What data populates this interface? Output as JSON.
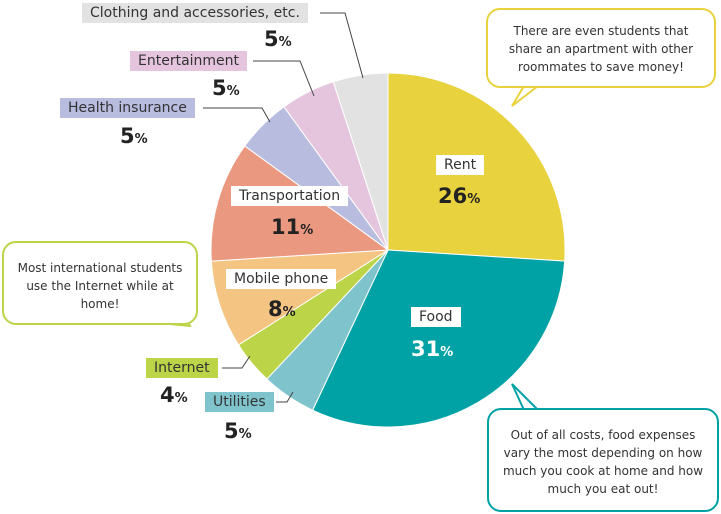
{
  "chart_data": {
    "type": "pie",
    "slices": [
      {
        "label": "Rent",
        "value": 26,
        "color": "#e8d23e"
      },
      {
        "label": "Food",
        "value": 31,
        "color": "#00a2a6"
      },
      {
        "label": "Utilities",
        "value": 5,
        "color": "#7fc4cc"
      },
      {
        "label": "Internet",
        "value": 4,
        "color": "#bcd448"
      },
      {
        "label": "Mobile phone",
        "value": 8,
        "color": "#f4c483"
      },
      {
        "label": "Transportation",
        "value": 11,
        "color": "#ea9880"
      },
      {
        "label": "Health insurance",
        "value": 5,
        "color": "#b8bde0"
      },
      {
        "label": "Entertainment",
        "value": 5,
        "color": "#e5c5dd"
      },
      {
        "label": "Clothing and accessories, etc.",
        "value": 5,
        "color": "#e2e2e2"
      }
    ],
    "unit": "%"
  },
  "labels": {
    "rent": "Rent",
    "food": "Food",
    "utilities": "Utilities",
    "internet": "Internet",
    "mobile": "Mobile phone",
    "transportation": "Transportation",
    "health": "Health insurance",
    "entertainment": "Entertainment",
    "clothing": "Clothing and accessories, etc."
  },
  "values": {
    "rent": "26",
    "food": "31",
    "utilities": "5",
    "internet": "4",
    "mobile": "8",
    "transportation": "11",
    "health": "5",
    "entertainment": "5",
    "clothing": "5"
  },
  "unit": "%",
  "notes": {
    "rent": "There are even students that share an apartment with other roommates to save money!",
    "internet": "Most international students use the Internet while at home!",
    "food": "Out of all costs, food expenses vary the most depending on how much you cook at home and how much you eat out!"
  },
  "colors": {
    "rent_bubble": "#e8d23e",
    "internet_bubble": "#bcd448",
    "food_bubble": "#00a2a6"
  }
}
